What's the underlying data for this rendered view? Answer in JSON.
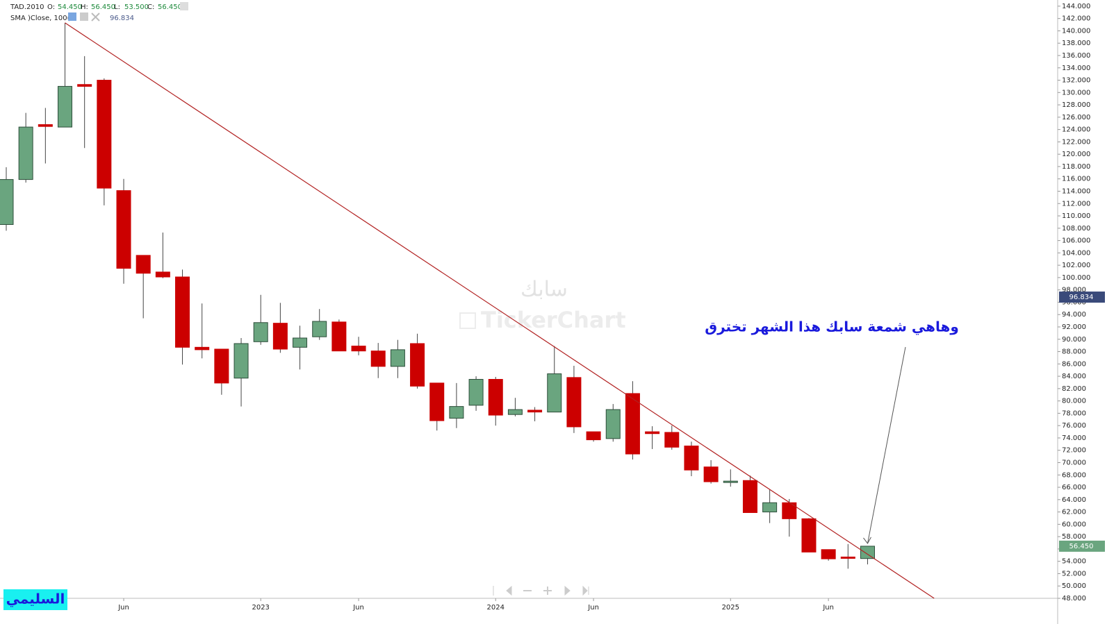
{
  "chart_data": {
    "type": "candlestick",
    "legend": {
      "symbol": "TAD.2010",
      "ohlc_labels": [
        "O:",
        "H:",
        "L:",
        "C:"
      ],
      "ohlc_value_labels": [
        "54.450",
        "56.450",
        "53.500",
        "56.450"
      ]
    },
    "sma": {
      "label": "SMA  )Close, 100(",
      "value": 96.834,
      "value_label": "96.834",
      "color": "#3a4a7a"
    },
    "last_price_label": "56.450",
    "watermark": {
      "name": "سابك",
      "brand": "TickerChart"
    },
    "annotation": {
      "text": "وهاهي شمعة سابك هذا الشهر  تخترق",
      "color": "#1a1adc"
    },
    "author_badge": "السليمي",
    "up_color": "#6aa57f",
    "down_color": "#cc0000",
    "trendline": {
      "color": "#b22222",
      "points": [
        {
          "x": 3,
          "y": 141.3
        },
        {
          "x": 47.4,
          "y": 48
        }
      ]
    },
    "categories": [
      null,
      null,
      null,
      null,
      null,
      null,
      "Jun",
      null,
      null,
      null,
      null,
      null,
      null,
      "2023",
      null,
      null,
      null,
      null,
      "Jun",
      null,
      null,
      null,
      null,
      null,
      null,
      "2024",
      null,
      null,
      null,
      null,
      "Jun",
      null,
      null,
      null,
      null,
      null,
      null,
      "2025",
      null,
      null,
      null,
      null,
      "Jun",
      null,
      null
    ],
    "open": [
      108.6,
      115.9,
      124.8,
      124.4,
      131.3,
      132,
      114.1,
      103.6,
      100.9,
      100.1,
      88.7,
      88.4,
      83.7,
      89.6,
      92.6,
      88.7,
      90.4,
      92.8,
      88.9,
      88.1,
      85.6,
      89.3,
      82.9,
      77.2,
      79.3,
      83.5,
      77.8,
      78.5,
      78.2,
      83.8,
      75,
      73.9,
      81.2,
      75,
      74.9,
      72.7,
      69.3,
      66.9,
      67.1,
      62,
      63.5,
      60.9,
      55.9,
      54.7,
      54.45
    ],
    "high": [
      117.9,
      126.7,
      127.5,
      141.3,
      135.9,
      132.3,
      116,
      103.6,
      107.3,
      101.3,
      95.8,
      88.4,
      90.2,
      97.2,
      95.9,
      92.2,
      94.9,
      93.2,
      90.4,
      89.4,
      89.9,
      90.9,
      82.9,
      82.9,
      84,
      83.9,
      80.5,
      79,
      88.9,
      85.7,
      75,
      79.5,
      83.2,
      75.9,
      76,
      73.4,
      70.4,
      68.9,
      67.9,
      65.6,
      64.1,
      61,
      55.9,
      56.8,
      56.45
    ],
    "low": [
      107.6,
      115.4,
      118.5,
      124.4,
      121,
      111.7,
      99,
      93.4,
      99.9,
      85.9,
      86.9,
      81,
      79.1,
      89.1,
      87.8,
      85.1,
      89.9,
      88.1,
      87.4,
      83.7,
      83.7,
      82,
      75.2,
      75.6,
      78.4,
      76,
      77.5,
      76.7,
      78.2,
      74.8,
      73.4,
      73.4,
      70.5,
      72.2,
      72.1,
      67.8,
      66.6,
      66.1,
      61.9,
      60.2,
      58,
      55.5,
      54.1,
      52.8,
      53.5
    ],
    "close": [
      115.9,
      124.4,
      124.5,
      131,
      131,
      114.5,
      101.5,
      100.7,
      100.1,
      88.7,
      88.3,
      82.9,
      89.3,
      92.7,
      88.4,
      90.2,
      92.9,
      88.1,
      88.1,
      85.6,
      88.3,
      82.4,
      76.8,
      79.1,
      83.5,
      77.7,
      78.6,
      78.2,
      84.4,
      75.8,
      73.7,
      78.6,
      71.4,
      74.7,
      72.5,
      68.8,
      66.9,
      67,
      61.9,
      63.5,
      60.9,
      55.5,
      54.4,
      54.6,
      56.45
    ],
    "ylim": [
      48,
      145
    ],
    "yticks": [
      {
        "value": 48,
        "label": "48.000"
      },
      {
        "value": 50,
        "label": "50.000"
      },
      {
        "value": 52,
        "label": "52.000"
      },
      {
        "value": 54,
        "label": "54.000"
      },
      {
        "value": 56,
        "label": "56.000"
      },
      {
        "value": 58,
        "label": "58.000"
      },
      {
        "value": 60,
        "label": "60.000"
      },
      {
        "value": 62,
        "label": "62.000"
      },
      {
        "value": 64,
        "label": "64.000"
      },
      {
        "value": 66,
        "label": "66.000"
      },
      {
        "value": 68,
        "label": "68.000"
      },
      {
        "value": 70,
        "label": "70.000"
      },
      {
        "value": 72,
        "label": "72.000"
      },
      {
        "value": 74,
        "label": "74.000"
      },
      {
        "value": 76,
        "label": "76.000"
      },
      {
        "value": 78,
        "label": "78.000"
      },
      {
        "value": 80,
        "label": "80.000"
      },
      {
        "value": 82,
        "label": "82.000"
      },
      {
        "value": 84,
        "label": "84.000"
      },
      {
        "value": 86,
        "label": "86.000"
      },
      {
        "value": 88,
        "label": "88.000"
      },
      {
        "value": 90,
        "label": "90.000"
      },
      {
        "value": 92,
        "label": "92.000"
      },
      {
        "value": 94,
        "label": "94.000"
      },
      {
        "value": 96,
        "label": "96.000"
      },
      {
        "value": 98,
        "label": "98.000"
      },
      {
        "value": 100,
        "label": "100.000"
      },
      {
        "value": 102,
        "label": "102.000"
      },
      {
        "value": 104,
        "label": "104.000"
      },
      {
        "value": 106,
        "label": "106.000"
      },
      {
        "value": 108,
        "label": "108.000"
      },
      {
        "value": 110,
        "label": "110.000"
      },
      {
        "value": 112,
        "label": "112.000"
      },
      {
        "value": 114,
        "label": "114.000"
      },
      {
        "value": 116,
        "label": "116.000"
      },
      {
        "value": 118,
        "label": "118.000"
      },
      {
        "value": 120,
        "label": "120.000"
      },
      {
        "value": 122,
        "label": "122.000"
      },
      {
        "value": 124,
        "label": "124.000"
      },
      {
        "value": 126,
        "label": "126.000"
      },
      {
        "value": 128,
        "label": "128.000"
      },
      {
        "value": 130,
        "label": "130.000"
      },
      {
        "value": 132,
        "label": "132.000"
      },
      {
        "value": 134,
        "label": "134.000"
      },
      {
        "value": 136,
        "label": "136.000"
      },
      {
        "value": 138,
        "label": "138.000"
      },
      {
        "value": 140,
        "label": "140.000"
      },
      {
        "value": 142,
        "label": "142.000"
      },
      {
        "value": 144,
        "label": "144.000"
      }
    ]
  }
}
